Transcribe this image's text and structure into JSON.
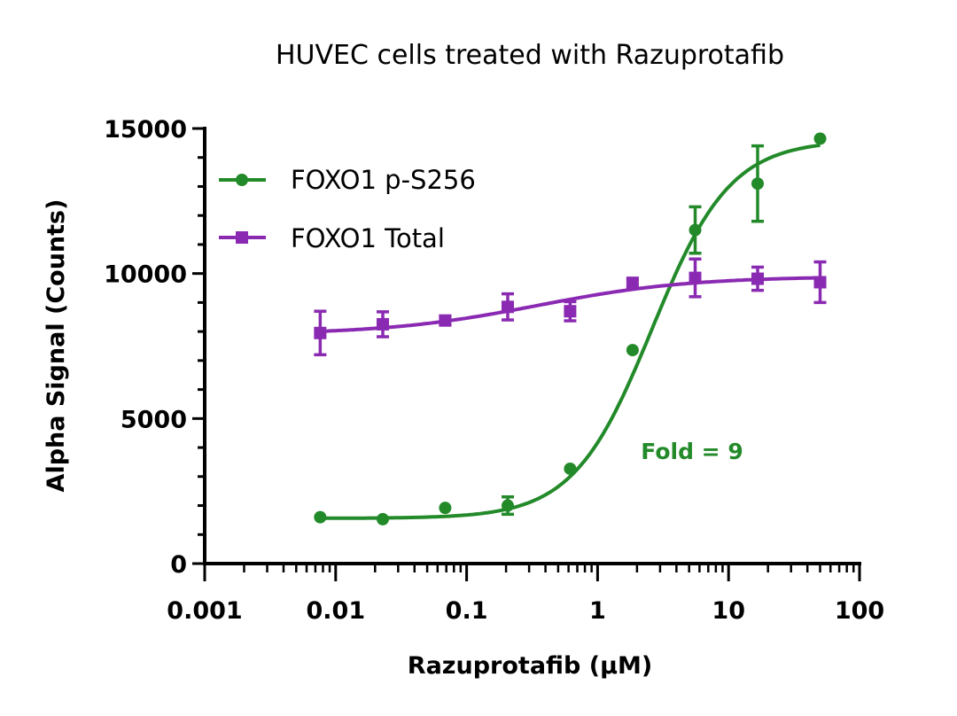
{
  "chart_data": {
    "type": "scatter",
    "title": "HUVEC cells treated with Razuprotafib",
    "xlabel": "Razuprotafib (µM)",
    "ylabel": "Alpha Signal (Counts)",
    "xscale": "log",
    "xlim": [
      0.001,
      100
    ],
    "ylim": [
      0,
      15000
    ],
    "xticks": [
      "0.001",
      "0.01",
      "0.1",
      "1",
      "10",
      "100"
    ],
    "yticks": [
      "0",
      "5000",
      "10000",
      "15000"
    ],
    "grid": false,
    "legend_position": "top-left",
    "annotation": "Fold = 9",
    "series": [
      {
        "name": "FOXO1 p-S256",
        "color": "#238a2a",
        "marker": "circle",
        "fit": "sigmoidal",
        "x": [
          0.00762,
          0.0229,
          0.0686,
          0.206,
          0.617,
          1.85,
          5.56,
          16.67,
          50
        ],
        "y": [
          1600,
          1530,
          1920,
          2000,
          3270,
          7360,
          11500,
          13100,
          14650
        ],
        "error": [
          0,
          0,
          0,
          300,
          0,
          0,
          800,
          1300,
          0
        ]
      },
      {
        "name": "FOXO1 Total",
        "color": "#8a2ab2",
        "marker": "square",
        "fit": "sigmoidal",
        "x": [
          0.00762,
          0.0229,
          0.0686,
          0.206,
          0.617,
          1.85,
          5.56,
          16.67,
          50
        ],
        "y": [
          7950,
          8250,
          8380,
          8850,
          8700,
          9680,
          9850,
          9820,
          9700
        ],
        "error": [
          750,
          430,
          150,
          450,
          330,
          150,
          650,
          400,
          700
        ]
      }
    ]
  }
}
